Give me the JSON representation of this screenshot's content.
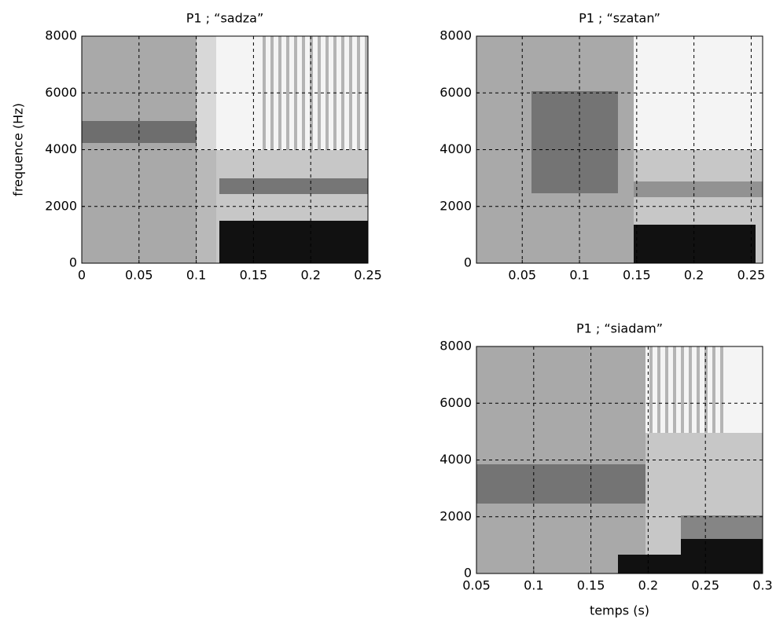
{
  "chart_data": [
    {
      "type": "spectrogram",
      "title": "P1 ; “sadza”",
      "ylabel": "frequence (Hz)",
      "xlim": [
        0,
        0.25
      ],
      "xticks": [
        0,
        0.05,
        0.1,
        0.15,
        0.2,
        0.25
      ],
      "ylim": [
        0,
        8000
      ],
      "yticks": [
        0,
        2000,
        4000,
        6000,
        8000
      ],
      "grid": true
    },
    {
      "type": "spectrogram",
      "title": "P1 ; “szatan”",
      "xlim": [
        0.01,
        0.26
      ],
      "xticks": [
        0.05,
        0.1,
        0.15,
        0.2,
        0.25
      ],
      "ylim": [
        0,
        8000
      ],
      "yticks": [
        0,
        2000,
        4000,
        6000,
        8000
      ],
      "grid": true
    },
    {
      "type": "spectrogram",
      "title": "P1 ; “siadam”",
      "xlabel": "temps (s)",
      "xlim": [
        0.05,
        0.3
      ],
      "xticks": [
        0.05,
        0.1,
        0.15,
        0.2,
        0.25,
        0.3
      ],
      "ylim": [
        0,
        8000
      ],
      "yticks": [
        0,
        2000,
        4000,
        6000,
        8000
      ],
      "grid": true
    }
  ]
}
